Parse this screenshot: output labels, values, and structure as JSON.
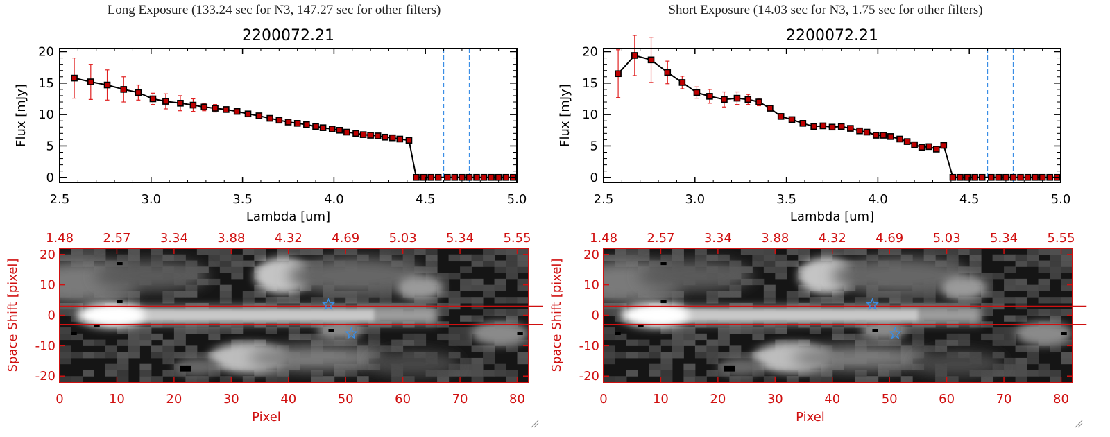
{
  "panels": {
    "left": {
      "title": "Long Exposure (133.24 sec for N3, 147.27 sec for other filters)"
    },
    "right": {
      "title": "Short Exposure (14.03 sec for N3, 1.75 sec for other filters)"
    }
  },
  "colors": {
    "axis_black": "#000000",
    "errbar_red": "#e02020",
    "marker_red": "#c00000",
    "image_axis_red": "#d01010",
    "dashed_blue": "#3a8ee6",
    "star_blue": "#3a8ee6"
  },
  "chart_data": [
    {
      "type": "line",
      "panel": "left",
      "title": "2200072.21",
      "xlabel": "Lambda [um]",
      "ylabel": "Flux [mJy]",
      "xlim": [
        2.5,
        5.0
      ],
      "ylim": [
        -0.8,
        20.5
      ],
      "xticks": [
        "2.5",
        "3.0",
        "3.5",
        "4.0",
        "4.5",
        "5.0"
      ],
      "xtick_values": [
        2.5,
        3.0,
        3.5,
        4.0,
        4.5,
        5.0
      ],
      "yticks": [
        "0",
        "5",
        "10",
        "15",
        "20"
      ],
      "ytick_values": [
        0,
        5,
        10,
        15,
        20
      ],
      "vlines": [
        4.6,
        4.74
      ],
      "x": [
        2.58,
        2.67,
        2.76,
        2.85,
        2.93,
        3.01,
        3.08,
        3.16,
        3.23,
        3.29,
        3.35,
        3.41,
        3.47,
        3.53,
        3.59,
        3.65,
        3.7,
        3.75,
        3.8,
        3.85,
        3.9,
        3.94,
        3.99,
        4.03,
        4.07,
        4.12,
        4.16,
        4.2,
        4.24,
        4.28,
        4.32,
        4.36,
        4.41,
        4.45,
        4.49,
        4.53,
        4.57,
        4.62,
        4.66,
        4.7,
        4.74,
        4.78,
        4.82,
        4.86,
        4.9,
        4.94,
        4.98
      ],
      "y": [
        15.8,
        15.2,
        14.7,
        14.0,
        13.5,
        12.5,
        12.1,
        11.8,
        11.5,
        11.2,
        11.0,
        10.8,
        10.5,
        10.1,
        9.8,
        9.4,
        9.1,
        8.8,
        8.6,
        8.4,
        8.1,
        7.9,
        7.7,
        7.5,
        7.2,
        7.0,
        6.8,
        6.7,
        6.6,
        6.4,
        6.3,
        6.1,
        5.9,
        0,
        0,
        0,
        0,
        0,
        0,
        0,
        0,
        0,
        0,
        0,
        0,
        0,
        0
      ],
      "yerr": [
        3.2,
        2.8,
        2.4,
        2.0,
        1.2,
        0.9,
        1.2,
        1.2,
        1.0,
        0.6,
        0.6,
        0,
        0,
        0,
        0,
        0,
        0,
        0,
        0,
        0,
        0,
        0,
        0,
        0,
        0,
        0,
        0,
        0,
        0,
        0,
        0,
        0,
        0,
        0,
        0,
        0,
        0,
        0,
        0,
        0,
        0,
        0,
        0,
        0,
        0,
        0,
        0
      ]
    },
    {
      "type": "heatmap",
      "panel": "left",
      "xlabel": "Pixel",
      "ylabel": "Space Shift [pixel]",
      "xlim": [
        0,
        82
      ],
      "ylim": [
        -22,
        22
      ],
      "xticks": [
        "0",
        "10",
        "20",
        "30",
        "40",
        "50",
        "60",
        "70",
        "80"
      ],
      "xtick_values": [
        0,
        10,
        20,
        30,
        40,
        50,
        60,
        70,
        80
      ],
      "yticks": [
        "-20",
        "-10",
        "0",
        "10",
        "20"
      ],
      "ytick_values": [
        -20,
        -10,
        0,
        10,
        20
      ],
      "top_ticks": [
        "1.48",
        "2.57",
        "3.34",
        "3.88",
        "4.32",
        "4.69",
        "5.03",
        "5.34",
        "5.55"
      ],
      "aperture_lines": [
        3,
        -3
      ],
      "stars": [
        {
          "x": 47,
          "y": 3.5
        },
        {
          "x": 51,
          "y": -6
        }
      ]
    },
    {
      "type": "line",
      "panel": "right",
      "title": "2200072.21",
      "xlabel": "Lambda [um]",
      "ylabel": "Flux [mJy]",
      "xlim": [
        2.5,
        5.0
      ],
      "ylim": [
        -0.8,
        20.5
      ],
      "xticks": [
        "2.5",
        "3.0",
        "3.5",
        "4.0",
        "4.5",
        "5.0"
      ],
      "xtick_values": [
        2.5,
        3.0,
        3.5,
        4.0,
        4.5,
        5.0
      ],
      "yticks": [
        "0",
        "5",
        "10",
        "15",
        "20"
      ],
      "ytick_values": [
        0,
        5,
        10,
        15,
        20
      ],
      "vlines": [
        4.6,
        4.74
      ],
      "x": [
        2.58,
        2.67,
        2.76,
        2.85,
        2.93,
        3.01,
        3.08,
        3.16,
        3.23,
        3.29,
        3.35,
        3.41,
        3.47,
        3.53,
        3.59,
        3.65,
        3.7,
        3.75,
        3.8,
        3.85,
        3.9,
        3.94,
        3.99,
        4.03,
        4.07,
        4.12,
        4.16,
        4.2,
        4.24,
        4.28,
        4.32,
        4.36,
        4.41,
        4.45,
        4.49,
        4.53,
        4.57,
        4.62,
        4.66,
        4.7,
        4.74,
        4.78,
        4.82,
        4.86,
        4.9,
        4.94,
        4.98
      ],
      "y": [
        16.5,
        19.4,
        18.7,
        16.7,
        15.1,
        13.5,
        12.9,
        12.4,
        12.6,
        12.4,
        12.0,
        11.0,
        9.7,
        9.2,
        8.6,
        8.1,
        8.2,
        8.0,
        8.1,
        7.8,
        7.4,
        7.2,
        6.7,
        6.7,
        6.5,
        6.1,
        5.7,
        5.2,
        4.8,
        4.9,
        4.5,
        5.1,
        0,
        0,
        0,
        0,
        0,
        0,
        0,
        0,
        0,
        0,
        0,
        0,
        0,
        0,
        0
      ],
      "yerr": [
        3.8,
        3.2,
        3.6,
        1.8,
        1.0,
        0.9,
        1.1,
        1.2,
        1.0,
        0.8,
        0.6,
        0,
        0,
        0,
        0,
        0,
        0,
        0,
        0,
        0,
        0,
        0,
        0,
        0,
        0,
        0,
        0,
        0,
        0,
        0,
        0,
        0,
        0,
        0,
        0,
        0,
        0,
        0,
        0,
        0,
        0,
        0,
        0,
        0,
        0,
        0,
        0
      ]
    },
    {
      "type": "heatmap",
      "panel": "right",
      "xlabel": "Pixel",
      "ylabel": "Space Shift [pixel]",
      "xlim": [
        0,
        82
      ],
      "ylim": [
        -22,
        22
      ],
      "xticks": [
        "0",
        "10",
        "20",
        "30",
        "40",
        "50",
        "60",
        "70",
        "80"
      ],
      "xtick_values": [
        0,
        10,
        20,
        30,
        40,
        50,
        60,
        70,
        80
      ],
      "yticks": [
        "-20",
        "-10",
        "0",
        "10",
        "20"
      ],
      "ytick_values": [
        -20,
        -10,
        0,
        10,
        20
      ],
      "top_ticks": [
        "1.48",
        "2.57",
        "3.34",
        "3.88",
        "4.32",
        "4.69",
        "5.03",
        "5.34",
        "5.55"
      ],
      "aperture_lines": [
        3,
        -3
      ],
      "stars": [
        {
          "x": 47,
          "y": 3.5
        },
        {
          "x": 51,
          "y": -6
        }
      ]
    }
  ]
}
